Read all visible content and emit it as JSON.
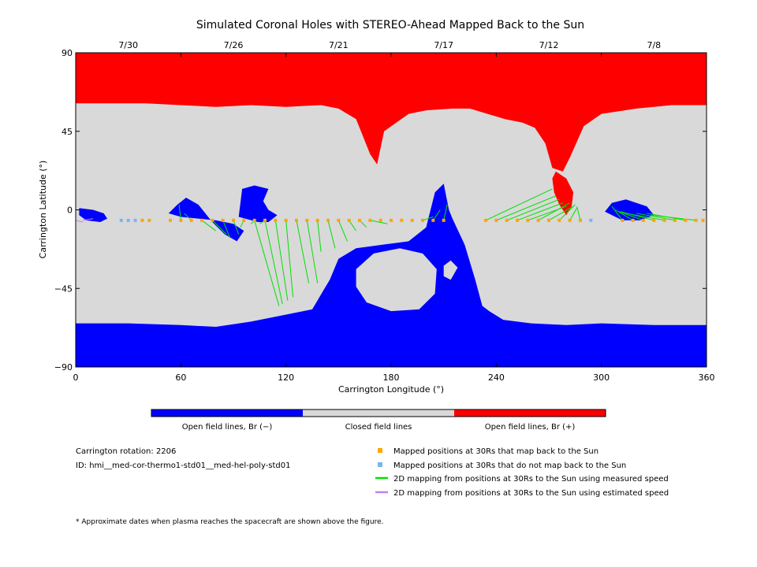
{
  "chart_data": {
    "type": "heatmap",
    "title": "Simulated Coronal Holes with STEREO-Ahead Mapped Back to the Sun",
    "xlabel": "Carrington Longitude (°)",
    "ylabel": "Carrington Latitude (°)",
    "xlim": [
      0,
      360
    ],
    "ylim": [
      -90,
      90
    ],
    "x_ticks": [
      "0",
      "60",
      "120",
      "180",
      "240",
      "300",
      "360"
    ],
    "x_tick_values": [
      0,
      60,
      120,
      180,
      240,
      300,
      360
    ],
    "y_ticks": [
      "90",
      "45",
      "0",
      "−45",
      "−90"
    ],
    "y_tick_values": [
      90,
      45,
      0,
      -45,
      -90
    ],
    "top_dates": [
      {
        "label": "7/30",
        "lon": 30
      },
      {
        "label": "7/26",
        "lon": 90
      },
      {
        "label": "7/21",
        "lon": 150
      },
      {
        "label": "7/17",
        "lon": 210
      },
      {
        "label": "7/12",
        "lon": 270
      },
      {
        "label": "7/8",
        "lon": 330
      }
    ],
    "colors": {
      "open_negative": "#0000ff",
      "closed": "#d9d9d9",
      "open_positive": "#ff0000",
      "mapped": "#ffa500",
      "unmapped": "#78b4f0",
      "measured_line": "#00e000",
      "estimated_line": "#c080f0"
    },
    "colorbar": [
      {
        "label": "Open field lines, Br (−)",
        "color": "#0000ff"
      },
      {
        "label": "Closed field lines",
        "color": "#d9d9d9"
      },
      {
        "label": "Open field lines, Br (+)",
        "color": "#ff0000"
      }
    ],
    "north_polar_boundary": [
      [
        0,
        61
      ],
      [
        20,
        61
      ],
      [
        40,
        61
      ],
      [
        60,
        60
      ],
      [
        80,
        59
      ],
      [
        100,
        60
      ],
      [
        120,
        59
      ],
      [
        140,
        60
      ],
      [
        150,
        58
      ],
      [
        160,
        52
      ],
      [
        168,
        32
      ],
      [
        172,
        26
      ],
      [
        176,
        45
      ],
      [
        190,
        55
      ],
      [
        200,
        57
      ],
      [
        215,
        58
      ],
      [
        225,
        58
      ],
      [
        235,
        55
      ],
      [
        245,
        52
      ],
      [
        255,
        50
      ],
      [
        262,
        47
      ],
      [
        268,
        38
      ],
      [
        272,
        24
      ],
      [
        278,
        22
      ],
      [
        282,
        30
      ],
      [
        290,
        48
      ],
      [
        300,
        55
      ],
      [
        320,
        58
      ],
      [
        340,
        60
      ],
      [
        360,
        60
      ]
    ],
    "south_polar_boundary": [
      [
        0,
        -65
      ],
      [
        30,
        -65
      ],
      [
        60,
        -66
      ],
      [
        80,
        -67
      ],
      [
        100,
        -64
      ],
      [
        120,
        -60
      ],
      [
        135,
        -57
      ],
      [
        142,
        -45
      ],
      [
        145,
        -40
      ],
      [
        150,
        -28
      ],
      [
        160,
        -22
      ],
      [
        175,
        -20
      ],
      [
        190,
        -18
      ],
      [
        200,
        -10
      ],
      [
        205,
        10
      ],
      [
        210,
        15
      ],
      [
        213,
        0
      ],
      [
        215,
        -5
      ],
      [
        222,
        -20
      ],
      [
        228,
        -40
      ],
      [
        232,
        -55
      ],
      [
        236,
        -58
      ],
      [
        244,
        -63
      ],
      [
        260,
        -65
      ],
      [
        280,
        -66
      ],
      [
        300,
        -65
      ],
      [
        330,
        -66
      ],
      [
        360,
        -66
      ]
    ],
    "open_negative_patches": [
      {
        "name": "patch-a",
        "points": [
          [
            2,
            1
          ],
          [
            10,
            0
          ],
          [
            16,
            -2
          ],
          [
            18,
            -5
          ],
          [
            14,
            -7
          ],
          [
            6,
            -6
          ],
          [
            2,
            -3
          ]
        ]
      },
      {
        "name": "patch-b",
        "points": [
          [
            53,
            -2
          ],
          [
            58,
            3
          ],
          [
            63,
            7
          ],
          [
            70,
            3
          ],
          [
            78,
            -7
          ],
          [
            85,
            -14
          ],
          [
            92,
            -18
          ],
          [
            96,
            -12
          ],
          [
            90,
            -8
          ],
          [
            80,
            -6
          ],
          [
            70,
            -5
          ],
          [
            60,
            -4
          ]
        ]
      },
      {
        "name": "patch-c",
        "points": [
          [
            93,
            -4
          ],
          [
            95,
            12
          ],
          [
            102,
            14
          ],
          [
            110,
            12
          ],
          [
            107,
            5
          ],
          [
            110,
            0
          ],
          [
            115,
            -3
          ],
          [
            110,
            -7
          ],
          [
            104,
            -7
          ]
        ]
      },
      {
        "name": "patch-d",
        "points": [
          [
            302,
            -1
          ],
          [
            306,
            4
          ],
          [
            314,
            6
          ],
          [
            326,
            2
          ],
          [
            330,
            -3
          ],
          [
            322,
            -6
          ],
          [
            312,
            -6
          ]
        ]
      }
    ],
    "open_positive_patches": [
      {
        "name": "south-extension",
        "points": [
          [
            274,
            22
          ],
          [
            280,
            18
          ],
          [
            284,
            10
          ],
          [
            283,
            2
          ],
          [
            280,
            -3
          ],
          [
            276,
            3
          ],
          [
            273,
            10
          ],
          [
            272,
            18
          ]
        ]
      }
    ],
    "closed_islands": [
      {
        "name": "island-a",
        "points": [
          [
            160,
            -34
          ],
          [
            170,
            -25
          ],
          [
            185,
            -22
          ],
          [
            198,
            -25
          ],
          [
            206,
            -34
          ],
          [
            205,
            -48
          ],
          [
            196,
            -57
          ],
          [
            180,
            -58
          ],
          [
            166,
            -53
          ],
          [
            160,
            -44
          ]
        ]
      },
      {
        "name": "island-b",
        "points": [
          [
            210,
            -32
          ],
          [
            214,
            -29
          ],
          [
            218,
            -33
          ],
          [
            214,
            -40
          ],
          [
            210,
            -38
          ]
        ]
      },
      {
        "name": "island-c",
        "points": [
          [
            230,
            -36
          ],
          [
            235,
            -40
          ],
          [
            240,
            -44
          ],
          [
            246,
            -50
          ],
          [
            240,
            -54
          ],
          [
            234,
            -50
          ],
          [
            230,
            -44
          ]
        ]
      }
    ],
    "mapped_points": {
      "lat": -6,
      "lon": [
        38,
        42,
        54,
        60,
        66,
        72,
        78,
        84,
        90,
        96,
        102,
        108,
        114,
        120,
        126,
        132,
        138,
        144,
        150,
        156,
        162,
        168,
        174,
        180,
        186,
        192,
        198,
        204,
        210,
        234,
        240,
        246,
        252,
        258,
        264,
        270,
        276,
        282,
        288,
        312,
        318,
        324,
        330,
        336,
        342,
        348,
        354,
        358
      ]
    },
    "unmapped_points": {
      "lat": -6,
      "lon": [
        26,
        30,
        34,
        294
      ]
    },
    "measured_mapping_lines": [
      [
        [
          60,
          -6
        ],
        [
          59,
          3
        ]
      ],
      [
        [
          66,
          -6
        ],
        [
          62,
          -2
        ]
      ],
      [
        [
          72,
          -6
        ],
        [
          80,
          -12
        ]
      ],
      [
        [
          78,
          -6
        ],
        [
          86,
          -14
        ]
      ],
      [
        [
          84,
          -6
        ],
        [
          88,
          -16
        ]
      ],
      [
        [
          90,
          -6
        ],
        [
          93,
          -14
        ]
      ],
      [
        [
          96,
          -6
        ],
        [
          94,
          -10
        ]
      ],
      [
        [
          102,
          -6
        ],
        [
          100,
          -8
        ]
      ],
      [
        [
          108,
          -6
        ],
        [
          105,
          -8
        ]
      ],
      [
        [
          102,
          -6
        ],
        [
          116,
          -55
        ]
      ],
      [
        [
          108,
          -6
        ],
        [
          118,
          -54
        ]
      ],
      [
        [
          114,
          -6
        ],
        [
          121,
          -52
        ]
      ],
      [
        [
          120,
          -6
        ],
        [
          124,
          -50
        ]
      ],
      [
        [
          126,
          -6
        ],
        [
          133,
          -42
        ]
      ],
      [
        [
          132,
          -6
        ],
        [
          138,
          -42
        ]
      ],
      [
        [
          138,
          -6
        ],
        [
          140,
          -24
        ]
      ],
      [
        [
          144,
          -6
        ],
        [
          148,
          -22
        ]
      ],
      [
        [
          150,
          -6
        ],
        [
          155,
          -18
        ]
      ],
      [
        [
          156,
          -6
        ],
        [
          160,
          -12
        ]
      ],
      [
        [
          162,
          -6
        ],
        [
          166,
          -10
        ]
      ],
      [
        [
          168,
          -6
        ],
        [
          178,
          -8
        ]
      ],
      [
        [
          198,
          -6
        ],
        [
          204,
          -4
        ]
      ],
      [
        [
          204,
          -6
        ],
        [
          208,
          0
        ]
      ],
      [
        [
          210,
          -6
        ],
        [
          212,
          3
        ]
      ],
      [
        [
          234,
          -6
        ],
        [
          272,
          12
        ]
      ],
      [
        [
          240,
          -6
        ],
        [
          274,
          8
        ]
      ],
      [
        [
          246,
          -6
        ],
        [
          276,
          6
        ]
      ],
      [
        [
          252,
          -6
        ],
        [
          278,
          4
        ]
      ],
      [
        [
          258,
          -6
        ],
        [
          280,
          2
        ]
      ],
      [
        [
          264,
          -6
        ],
        [
          282,
          4
        ]
      ],
      [
        [
          270,
          -6
        ],
        [
          284,
          2
        ]
      ],
      [
        [
          276,
          -6
        ],
        [
          285,
          3
        ]
      ],
      [
        [
          282,
          -6
        ],
        [
          286,
          1
        ]
      ],
      [
        [
          288,
          -6
        ],
        [
          286,
          2
        ]
      ],
      [
        [
          312,
          -6
        ],
        [
          306,
          2
        ]
      ],
      [
        [
          318,
          -6
        ],
        [
          308,
          0
        ]
      ],
      [
        [
          324,
          -6
        ],
        [
          310,
          -1
        ]
      ],
      [
        [
          330,
          -6
        ],
        [
          311,
          -1
        ]
      ],
      [
        [
          336,
          -6
        ],
        [
          314,
          -2
        ]
      ],
      [
        [
          342,
          -6
        ],
        [
          320,
          -2
        ]
      ],
      [
        [
          348,
          -6
        ],
        [
          326,
          -2
        ]
      ],
      [
        [
          354,
          -6
        ],
        [
          328,
          -3
        ]
      ]
    ],
    "estimated_mapping_lines": [
      [
        [
          0,
          -6
        ],
        [
          4,
          -7
        ]
      ],
      [
        [
          4,
          -6
        ],
        [
          10,
          -5
        ]
      ]
    ]
  },
  "info": {
    "rotation": "Carrington rotation: 2206",
    "id": "ID: hmi__med-cor-thermo1-std01__med-hel-poly-std01"
  },
  "legend": {
    "mapped": "Mapped positions at 30Rs that map back to the Sun",
    "unmapped": "Mapped positions at 30Rs that do not map back to the Sun",
    "measured": "2D mapping from positions at 30Rs to the Sun using measured speed",
    "estimated": "2D mapping from positions at 30Rs to the Sun using estimated speed"
  },
  "footnote": "* Approximate dates when plasma reaches the spacecraft are shown above the figure."
}
